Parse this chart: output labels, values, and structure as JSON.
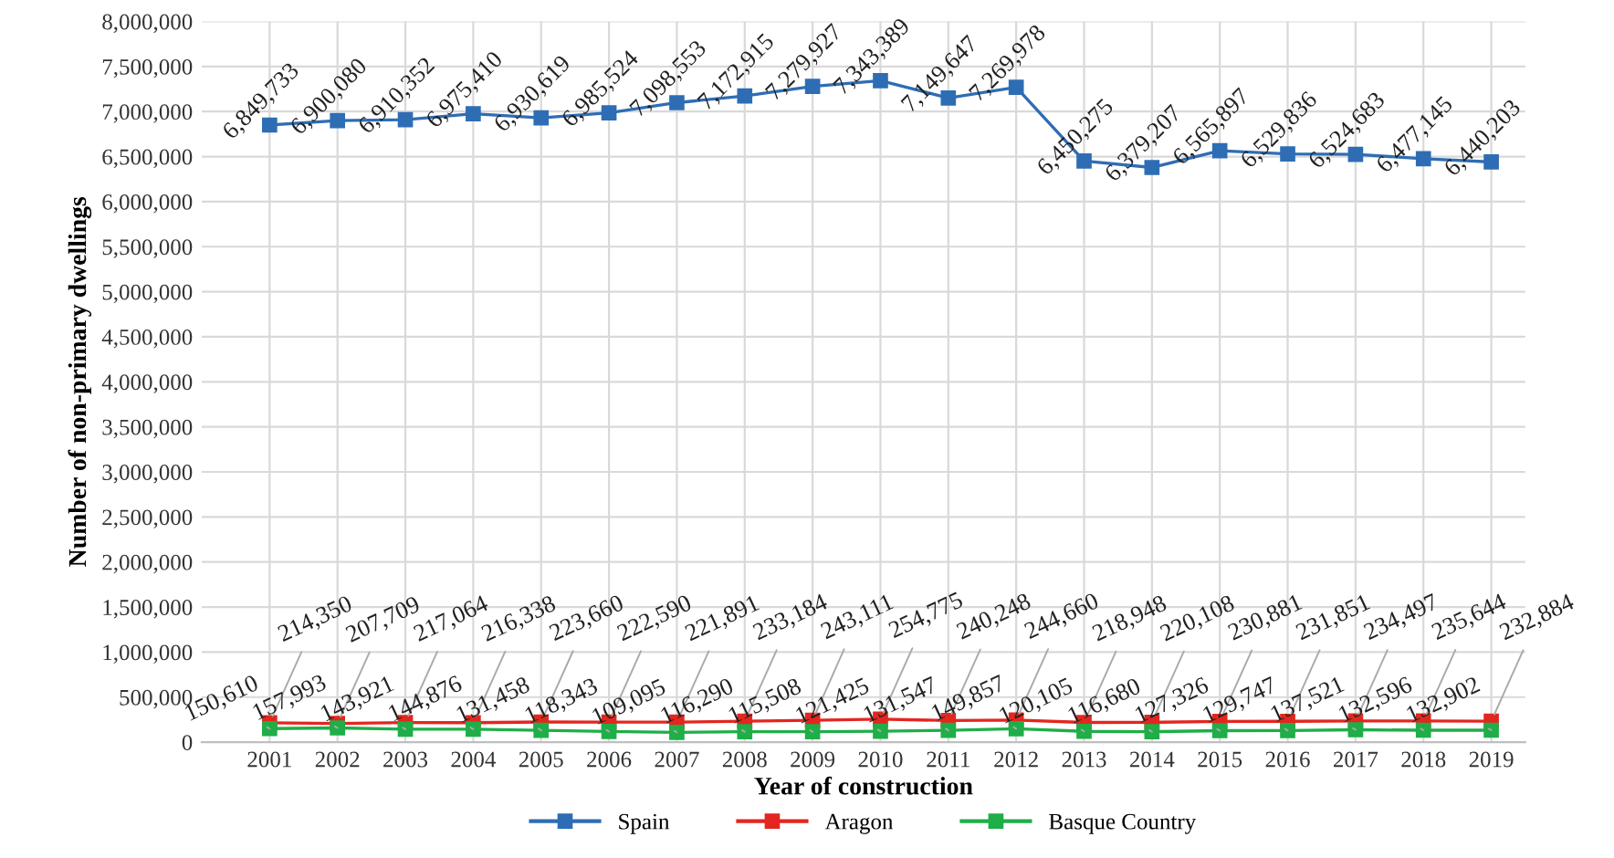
{
  "chart_data": {
    "type": "line",
    "xlabel": "Year of construction",
    "ylabel": "Number of non-primary dwellings",
    "categories": [
      "2001",
      "2002",
      "2003",
      "2004",
      "2005",
      "2006",
      "2007",
      "2008",
      "2009",
      "2010",
      "2011",
      "2012",
      "2013",
      "2014",
      "2015",
      "2016",
      "2017",
      "2018",
      "2019"
    ],
    "series": [
      {
        "name": "Spain",
        "color": "#2e6db4",
        "values": [
          6849733,
          6900080,
          6910352,
          6975410,
          6930619,
          6985524,
          7098553,
          7172915,
          7279927,
          7343389,
          7149647,
          7269978,
          6450275,
          6379207,
          6565897,
          6529836,
          6524683,
          6477145,
          6440203
        ],
        "value_labels": [
          "6,849,733",
          "6,900,080",
          "6,910,352",
          "6,975,410",
          "6,930,619",
          "6,985,524",
          "7,098,553",
          "7,172,915",
          "7,279,927",
          "7,343,389",
          "7,149,647",
          "7,269,978",
          "6,450,275",
          "6,379,207",
          "6,565,897",
          "6,529,836",
          "6,524,683",
          "6,477,145",
          "6,440,203"
        ]
      },
      {
        "name": "Aragon",
        "color": "#e3261f",
        "values": [
          214350,
          207709,
          217064,
          216338,
          223660,
          222590,
          221891,
          233184,
          243111,
          254775,
          240248,
          244660,
          218948,
          220108,
          230881,
          231851,
          234497,
          235644,
          232884
        ],
        "value_labels": [
          "214,350",
          "207,709",
          "217,064",
          "216,338",
          "223,660",
          "222,590",
          "221,891",
          "233,184",
          "243,111",
          "254,775",
          "240,248",
          "244,660",
          "218,948",
          "220,108",
          "230,881",
          "231,851",
          "234,497",
          "235,644",
          "232,884"
        ]
      },
      {
        "name": "Basque Country",
        "color": "#1fae48",
        "values": [
          150610,
          157993,
          143921,
          144876,
          131458,
          118343,
          109095,
          116290,
          115508,
          121425,
          131547,
          149857,
          120105,
          116680,
          127326,
          129747,
          137521,
          132596,
          132902
        ],
        "value_labels": [
          "150,610",
          "157,993",
          "143,921",
          "144,876",
          "131,458",
          "118,343",
          "109,095",
          "116,290",
          "115,508",
          "121,425",
          "131,547",
          "149,857",
          "120,105",
          "116,680",
          "127,326",
          "129,747",
          "137,521",
          "132,596",
          "132,902"
        ]
      }
    ],
    "ylim": [
      0,
      8000000
    ],
    "yticks": [
      {
        "value": 0,
        "label": "0"
      },
      {
        "value": 500000,
        "label": "500,000"
      },
      {
        "value": 1000000,
        "label": "1,000,000"
      },
      {
        "value": 1500000,
        "label": "1,500,000"
      },
      {
        "value": 2000000,
        "label": "2,000,000"
      },
      {
        "value": 2500000,
        "label": "2,500,000"
      },
      {
        "value": 3000000,
        "label": "3,000,000"
      },
      {
        "value": 3500000,
        "label": "3,500,000"
      },
      {
        "value": 4000000,
        "label": "4,000,000"
      },
      {
        "value": 4500000,
        "label": "4,500,000"
      },
      {
        "value": 5000000,
        "label": "5,000,000"
      },
      {
        "value": 5500000,
        "label": "5,500,000"
      },
      {
        "value": 6000000,
        "label": "6,000,000"
      },
      {
        "value": 6500000,
        "label": "6,500,000"
      },
      {
        "value": 7000000,
        "label": "7,000,000"
      },
      {
        "value": 7500000,
        "label": "7,500,000"
      },
      {
        "value": 8000000,
        "label": "8,000,000"
      }
    ],
    "grid": true,
    "legend": "bottom",
    "marker": "square",
    "line_style": "solid"
  }
}
